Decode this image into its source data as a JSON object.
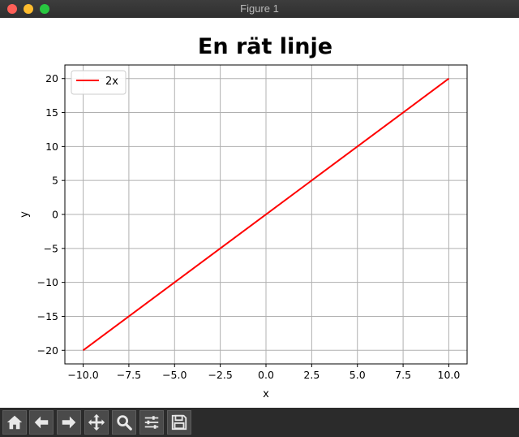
{
  "window": {
    "title": "Figure 1"
  },
  "chart_data": {
    "type": "line",
    "title": "En rät linje",
    "xlabel": "x",
    "ylabel": "y",
    "xlim": [
      -11,
      11
    ],
    "ylim": [
      -22,
      22
    ],
    "xticks": [
      -10.0,
      -7.5,
      -5.0,
      -2.5,
      0.0,
      2.5,
      5.0,
      7.5,
      10.0
    ],
    "xtick_labels": [
      "−10.0",
      "−7.5",
      "−5.0",
      "−2.5",
      "0.0",
      "2.5",
      "5.0",
      "7.5",
      "10.0"
    ],
    "yticks": [
      -20,
      -15,
      -10,
      -5,
      0,
      5,
      10,
      15,
      20
    ],
    "ytick_labels": [
      "−20",
      "−15",
      "−10",
      "−5",
      "0",
      "5",
      "10",
      "15",
      "20"
    ],
    "grid": true,
    "legend": "top-left",
    "series": [
      {
        "name": "2x",
        "color": "#ff0000",
        "x": [
          -10,
          10
        ],
        "y": [
          -20,
          20
        ]
      }
    ]
  },
  "toolbar": {
    "buttons": [
      {
        "name": "home-button",
        "icon": "home-icon"
      },
      {
        "name": "back-button",
        "icon": "arrow-left-icon"
      },
      {
        "name": "forward-button",
        "icon": "arrow-right-icon"
      },
      {
        "name": "pan-button",
        "icon": "move-icon"
      },
      {
        "name": "zoom-button",
        "icon": "magnifier-icon"
      },
      {
        "name": "configure-subplots-button",
        "icon": "sliders-icon"
      },
      {
        "name": "save-button",
        "icon": "floppy-disk-icon"
      }
    ]
  }
}
